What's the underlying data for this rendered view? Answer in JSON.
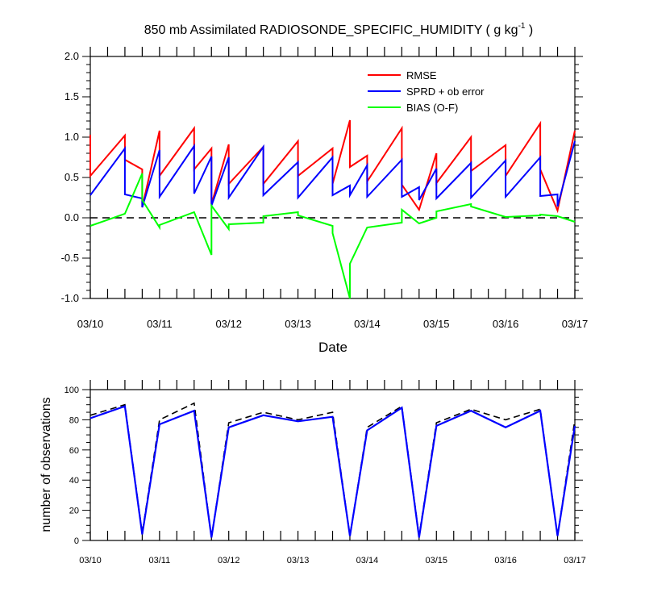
{
  "title_main": "850 mb Assimilated RADIOSONDE_SPECIFIC_HUMIDITY ( g kg",
  "title_exp": "-1",
  "title_end": " )",
  "colors": {
    "rmse": "#ff0000",
    "sprd": "#0000ff",
    "bias": "#00ff00",
    "zero": "#000000",
    "count_total": "#000000",
    "count_used": "#0000ff"
  },
  "chart_data": [
    {
      "type": "line",
      "ylim": [
        -1.0,
        2.0
      ],
      "xlim": [
        0,
        7
      ],
      "x_tick_labels": [
        {
          "x": 0,
          "label": "03/10"
        },
        {
          "x": 1,
          "label": "03/11"
        },
        {
          "x": 2,
          "label": "03/12"
        },
        {
          "x": 3,
          "label": "03/13"
        },
        {
          "x": 4,
          "label": "03/14"
        },
        {
          "x": 5,
          "label": "03/15"
        },
        {
          "x": 6,
          "label": "03/16"
        },
        {
          "x": 7,
          "label": "03/17"
        }
      ],
      "y_tick_labels": [
        "-1.0",
        "-0.5",
        "0.0",
        "0.5",
        "1.0",
        "1.5",
        "2.0"
      ],
      "xlabel": "Date",
      "ylabel": "",
      "legend": {
        "position": "top-right",
        "entries": [
          "RMSE",
          "SPRD + ob error",
          "BIAS (O-F)"
        ]
      },
      "series": [
        {
          "name": "RMSE",
          "points": [
            [
              0,
              1.03
            ],
            [
              0,
              0.52
            ],
            [
              0.5,
              1.02
            ],
            [
              0.5,
              0.72
            ],
            [
              0.75,
              0.6
            ],
            [
              0.75,
              0.13
            ],
            [
              1,
              1.08
            ],
            [
              1,
              0.52
            ],
            [
              1.5,
              1.11
            ],
            [
              1.5,
              0.6
            ],
            [
              1.75,
              0.86
            ],
            [
              1.75,
              0.17
            ],
            [
              2,
              0.91
            ],
            [
              2,
              0.42
            ],
            [
              2.5,
              0.88
            ],
            [
              2.5,
              0.42
            ],
            [
              3,
              0.95
            ],
            [
              3,
              0.52
            ],
            [
              3.5,
              0.86
            ],
            [
              3.5,
              0.42
            ],
            [
              3.75,
              1.21
            ],
            [
              3.75,
              0.63
            ],
            [
              4,
              0.77
            ],
            [
              4,
              0.45
            ],
            [
              4.5,
              1.11
            ],
            [
              4.5,
              0.41
            ],
            [
              4.75,
              0.1
            ],
            [
              5,
              0.8
            ],
            [
              5,
              0.43
            ],
            [
              5.5,
              1.0
            ],
            [
              5.5,
              0.58
            ],
            [
              6,
              0.9
            ],
            [
              6,
              0.52
            ],
            [
              6.5,
              1.17
            ],
            [
              6.5,
              0.6
            ],
            [
              6.75,
              0.09
            ],
            [
              7,
              1.08
            ]
          ]
        },
        {
          "name": "SPRD + ob error",
          "points": [
            [
              0,
              0.28
            ],
            [
              0.5,
              0.86
            ],
            [
              0.5,
              0.29
            ],
            [
              0.75,
              0.24
            ],
            [
              0.75,
              0.13
            ],
            [
              1,
              0.84
            ],
            [
              1,
              0.26
            ],
            [
              1.5,
              0.89
            ],
            [
              1.5,
              0.3
            ],
            [
              1.75,
              0.76
            ],
            [
              1.75,
              0.15
            ],
            [
              2,
              0.75
            ],
            [
              2,
              0.25
            ],
            [
              2.5,
              0.88
            ],
            [
              2.5,
              0.28
            ],
            [
              3,
              0.69
            ],
            [
              3,
              0.25
            ],
            [
              3.5,
              0.75
            ],
            [
              3.5,
              0.28
            ],
            [
              3.75,
              0.4
            ],
            [
              3.75,
              0.28
            ],
            [
              4,
              0.65
            ],
            [
              4,
              0.26
            ],
            [
              4.5,
              0.72
            ],
            [
              4.5,
              0.26
            ],
            [
              4.75,
              0.38
            ],
            [
              4.75,
              0.22
            ],
            [
              5,
              0.61
            ],
            [
              5,
              0.24
            ],
            [
              5.5,
              0.68
            ],
            [
              5.5,
              0.25
            ],
            [
              6,
              0.71
            ],
            [
              6,
              0.26
            ],
            [
              6.5,
              0.75
            ],
            [
              6.5,
              0.27
            ],
            [
              6.75,
              0.29
            ],
            [
              6.75,
              0.14
            ],
            [
              7,
              0.95
            ]
          ]
        },
        {
          "name": "BIAS (O-F)",
          "points": [
            [
              0,
              -0.1
            ],
            [
              0.5,
              0.05
            ],
            [
              0.75,
              0.55
            ],
            [
              0.75,
              0.22
            ],
            [
              1,
              -0.12
            ],
            [
              1,
              -0.09
            ],
            [
              1.5,
              0.07
            ],
            [
              1.75,
              -0.46
            ],
            [
              1.75,
              0.15
            ],
            [
              2,
              -0.14
            ],
            [
              2,
              -0.08
            ],
            [
              2.5,
              -0.06
            ],
            [
              2.5,
              0.02
            ],
            [
              3,
              0.07
            ],
            [
              3,
              0.03
            ],
            [
              3.5,
              -0.1
            ],
            [
              3.5,
              -0.19
            ],
            [
              3.75,
              -1.0
            ],
            [
              3.75,
              -0.57
            ],
            [
              4,
              -0.12
            ],
            [
              4.5,
              -0.06
            ],
            [
              4.5,
              0.1
            ],
            [
              4.75,
              -0.07
            ],
            [
              5,
              0.0
            ],
            [
              5,
              0.08
            ],
            [
              5.5,
              0.17
            ],
            [
              5.5,
              0.14
            ],
            [
              6,
              0.01
            ],
            [
              6.5,
              0.03
            ],
            [
              6.5,
              0.04
            ],
            [
              6.75,
              0.02
            ],
            [
              7,
              -0.05
            ]
          ]
        }
      ],
      "zero_line": 0.0
    },
    {
      "type": "line",
      "ylim": [
        0,
        100
      ],
      "xlim": [
        0,
        7
      ],
      "x_tick_labels": [
        {
          "x": 0,
          "label": "03/10"
        },
        {
          "x": 1,
          "label": "03/11"
        },
        {
          "x": 2,
          "label": "03/12"
        },
        {
          "x": 3,
          "label": "03/13"
        },
        {
          "x": 4,
          "label": "03/14"
        },
        {
          "x": 5,
          "label": "03/15"
        },
        {
          "x": 6,
          "label": "03/16"
        },
        {
          "x": 7,
          "label": "03/17"
        }
      ],
      "y_tick_labels": [
        "0",
        "20",
        "40",
        "60",
        "80",
        "100"
      ],
      "xlabel": "",
      "ylabel": "number of observations",
      "series": [
        {
          "style": "dashed",
          "points": [
            [
              0,
              83
            ],
            [
              0.5,
              90
            ],
            [
              0.75,
              5
            ],
            [
              1,
              80
            ],
            [
              1.5,
              91
            ],
            [
              1.75,
              2
            ],
            [
              2,
              78
            ],
            [
              2.5,
              85
            ],
            [
              3,
              80
            ],
            [
              3.5,
              85
            ],
            [
              3.75,
              3
            ],
            [
              4,
              75
            ],
            [
              4.5,
              89
            ],
            [
              4.75,
              3
            ],
            [
              5,
              78
            ],
            [
              5.5,
              87
            ],
            [
              6,
              80
            ],
            [
              6.5,
              87
            ],
            [
              6.75,
              3
            ],
            [
              7,
              80
            ]
          ]
        },
        {
          "style": "solid",
          "points": [
            [
              0,
              81
            ],
            [
              0.5,
              89
            ],
            [
              0.75,
              4
            ],
            [
              1,
              77
            ],
            [
              1.5,
              86
            ],
            [
              1.75,
              2
            ],
            [
              2,
              75
            ],
            [
              2.5,
              83
            ],
            [
              3,
              79
            ],
            [
              3.5,
              82
            ],
            [
              3.75,
              3
            ],
            [
              4,
              73
            ],
            [
              4.5,
              88
            ],
            [
              4.75,
              2
            ],
            [
              5,
              76
            ],
            [
              5.5,
              86
            ],
            [
              6,
              75
            ],
            [
              6.5,
              86
            ],
            [
              6.75,
              3
            ],
            [
              7,
              76
            ]
          ]
        }
      ]
    }
  ]
}
